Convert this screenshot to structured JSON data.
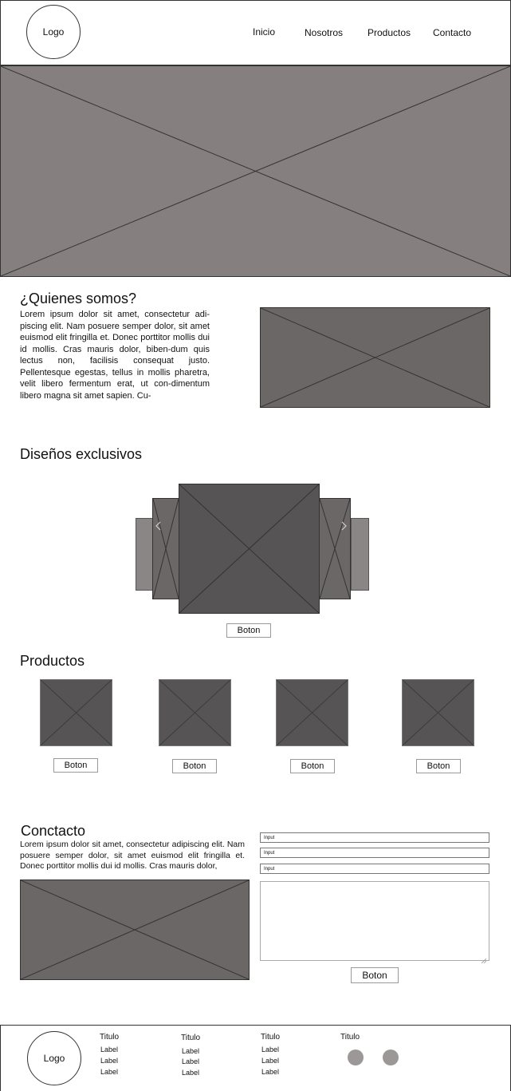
{
  "header": {
    "logo_text": "Logo",
    "nav": [
      "Inicio",
      "Nosotros",
      "Productos",
      "Contacto"
    ]
  },
  "about": {
    "title": "¿Quienes somos?",
    "text": "Lorem ipsum dolor sit amet, consectetur adi-piscing elit. Nam posuere semper dolor, sit amet euismod elit fringilla et. Donec porttitor mollis dui id mollis. Cras mauris dolor, biben-dum quis lectus non, facilisis consequat justo. Pellentesque egestas, tellus in mollis pharetra, velit libero fermentum erat, ut con-dimentum libero magna sit amet sapien. Cu-"
  },
  "designs": {
    "title": "Diseños exclusivos",
    "prev_icon": "chevron-left-icon",
    "next_icon": "chevron-right-icon",
    "button": "Boton"
  },
  "products": {
    "title": "Productos",
    "items": [
      {
        "button": "Boton"
      },
      {
        "button": "Boton"
      },
      {
        "button": "Boton"
      },
      {
        "button": "Boton"
      }
    ]
  },
  "contact": {
    "title": "Conctacto",
    "text": "Lorem ipsum dolor sit amet, consectetur adipiscing elit. Nam posuere semper dolor, sit amet euismod elit fringilla et. Donec porttitor mollis dui id mollis. Cras mauris dolor,",
    "inputs": [
      "Input",
      "Input",
      "Input"
    ],
    "textarea_value": "",
    "submit": "Boton"
  },
  "footer": {
    "logo_text": "Logo",
    "columns": [
      {
        "title": "Titulo",
        "labels": [
          "Label",
          "Label",
          "Label"
        ]
      },
      {
        "title": "Titulo",
        "labels": [
          "Label",
          "Label",
          "Label"
        ]
      },
      {
        "title": "Titulo",
        "labels": [
          "Label",
          "Label",
          "Label"
        ]
      },
      {
        "title": "Titulo",
        "labels": []
      }
    ]
  },
  "colors": {
    "hero": "#857f7f",
    "image": "#6b6767",
    "carousel_main": "#565454",
    "social": "#9c9898"
  }
}
